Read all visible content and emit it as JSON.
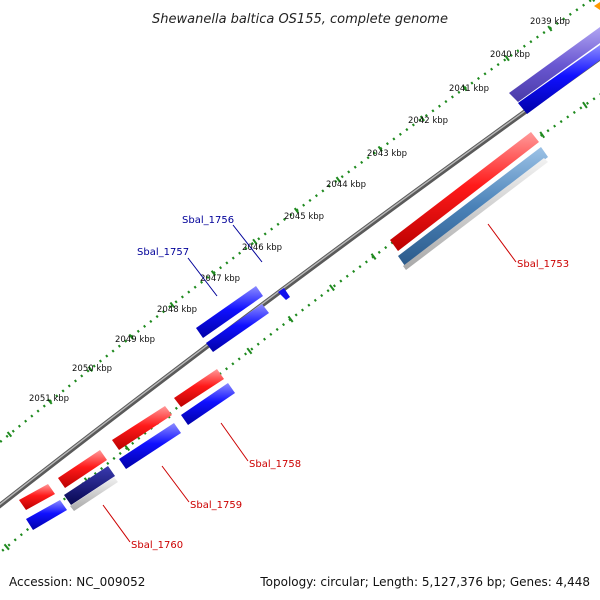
{
  "title": "Shewanella baltica OS155, complete genome",
  "footer": {
    "accession": "Accession: NC_009052",
    "summary": "Topology: circular; Length: 5,127,376 bp; Genes: 4,448"
  },
  "ticks": [
    "2039 kbp",
    "2040 kbp",
    "2041 kbp",
    "2042 kbp",
    "2043 kbp",
    "2044 kbp",
    "2045 kbp",
    "2046 kbp",
    "2047 kbp",
    "2048 kbp",
    "2049 kbp",
    "2050 kbp",
    "2051 kbp"
  ],
  "genes": {
    "sbal_1753": "Sbal_1753",
    "sbal_1756": "Sbal_1756",
    "sbal_1757": "Sbal_1757",
    "sbal_1758": "Sbal_1758",
    "sbal_1759": "Sbal_1759",
    "sbal_1760": "Sbal_1760"
  },
  "colors": {
    "backbone": "#7a7a7a",
    "cds_red": "#ee1111",
    "cds_blue": "#1111ee",
    "dark_blue": "#0a0a80",
    "steel_blue": "#4477aa",
    "purple": "#6655cc",
    "tick_green": "#1f8a1f",
    "label_red": "#cc0000",
    "label_blue": "#000099"
  }
}
